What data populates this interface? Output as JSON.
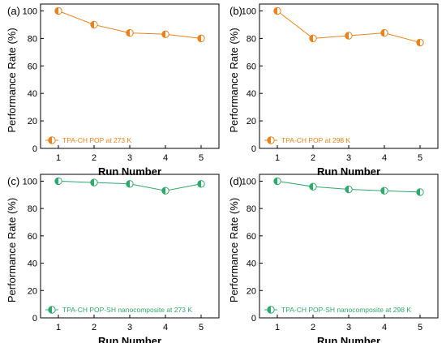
{
  "chart_data": [
    {
      "type": "line",
      "panel_label": "(a)",
      "xlabel": "Run Number",
      "ylabel": "Performance Rate (%)",
      "x": [
        1,
        2,
        3,
        4,
        5
      ],
      "xlim": [
        0.5,
        5.5
      ],
      "ylim": [
        0,
        105
      ],
      "yticks": [
        0,
        20,
        40,
        60,
        80,
        100
      ],
      "grid": false,
      "legend_position": "bottom-left",
      "color": "#E8821E",
      "series": [
        {
          "name": "TPA-CH POP at 273 K",
          "values": [
            100,
            90,
            84,
            83,
            80
          ]
        }
      ]
    },
    {
      "type": "line",
      "panel_label": "(b)",
      "xlabel": "Run Number",
      "ylabel": "Performance Rate (%)",
      "x": [
        1,
        2,
        3,
        4,
        5
      ],
      "xlim": [
        0.5,
        5.5
      ],
      "ylim": [
        0,
        105
      ],
      "yticks": [
        0,
        20,
        40,
        60,
        80,
        100
      ],
      "grid": false,
      "legend_position": "bottom-left",
      "color": "#E8821E",
      "series": [
        {
          "name": "TPA-CH POP at 298 K",
          "values": [
            100,
            80,
            82,
            84,
            77
          ]
        }
      ]
    },
    {
      "type": "line",
      "panel_label": "(c)",
      "xlabel": "Run Number",
      "ylabel": "Performance Rate (%)",
      "x": [
        1,
        2,
        3,
        4,
        5
      ],
      "xlim": [
        0.5,
        5.5
      ],
      "ylim": [
        0,
        105
      ],
      "yticks": [
        0,
        20,
        40,
        60,
        80,
        100
      ],
      "grid": false,
      "legend_position": "bottom-left",
      "color": "#2FA86B",
      "series": [
        {
          "name": "TPA-CH POP-SH nanocomposite at 273 K",
          "values": [
            100,
            99,
            98,
            93,
            98
          ]
        }
      ]
    },
    {
      "type": "line",
      "panel_label": "(d)",
      "xlabel": "Run Number",
      "ylabel": "Performance Rate (%)",
      "x": [
        1,
        2,
        3,
        4,
        5
      ],
      "xlim": [
        0.5,
        5.5
      ],
      "ylim": [
        0,
        105
      ],
      "yticks": [
        0,
        20,
        40,
        60,
        80,
        100
      ],
      "grid": false,
      "legend_position": "bottom-left",
      "color": "#2FA86B",
      "series": [
        {
          "name": "TPA-CH POP-SH nanocomposite at 298 K",
          "values": [
            100,
            96,
            94,
            93,
            92
          ]
        }
      ]
    }
  ]
}
